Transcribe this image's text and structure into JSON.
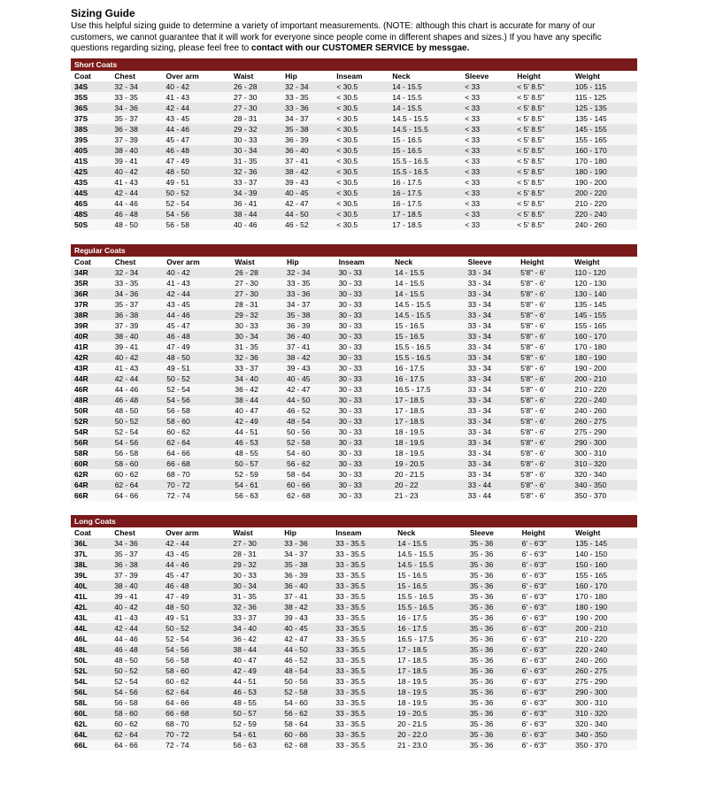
{
  "title": "Sizing Guide",
  "intro_parts": [
    "Use this helpful sizing guide to determine a variety of important measurements. (NOTE: although this chart is accurate for many of our customers, we cannot guarantee that it will work for everyone since people come in different shapes and sizes.) If you have any specific questions regarding sizing, please feel free to ",
    "contact with our CUSTOMER SERVICE by messgae."
  ],
  "columns": [
    "Coat",
    "Chest",
    "Over arm",
    "Waist",
    "Hip",
    "Inseam",
    "Neck",
    "Sleeve",
    "Height",
    "Weight"
  ],
  "sections": [
    {
      "name": "Short Coats",
      "rows": [
        [
          "34S",
          "32 - 34",
          "40 - 42",
          "26 - 28",
          "32 - 34",
          "< 30.5",
          "14 - 15.5",
          "< 33",
          "< 5' 8.5\"",
          "105 - 115"
        ],
        [
          "35S",
          "33 - 35",
          "41 - 43",
          "27 - 30",
          "33 - 35",
          "< 30.5",
          "14 - 15.5",
          "< 33",
          "< 5' 8.5\"",
          "115 - 125"
        ],
        [
          "36S",
          "34 - 36",
          "42 - 44",
          "27 - 30",
          "33 - 36",
          "< 30.5",
          "14 - 15.5",
          "< 33",
          "< 5' 8.5\"",
          "125 - 135"
        ],
        [
          "37S",
          "35 - 37",
          "43 - 45",
          "28 - 31",
          "34 - 37",
          "< 30.5",
          "14.5 - 15.5",
          "< 33",
          "< 5' 8.5\"",
          "135 - 145"
        ],
        [
          "38S",
          "36 - 38",
          "44 - 46",
          "29 - 32",
          "35 - 38",
          "< 30.5",
          "14.5 - 15.5",
          "< 33",
          "< 5' 8.5\"",
          "145 - 155"
        ],
        [
          "39S",
          "37 - 39",
          "45 - 47",
          "30 - 33",
          "36 - 39",
          "< 30.5",
          "15 - 16.5",
          "< 33",
          "< 5' 8.5\"",
          "155 - 165"
        ],
        [
          "40S",
          "38 - 40",
          "46 - 48",
          "30 - 34",
          "36 - 40",
          "< 30.5",
          "15 - 16.5",
          "< 33",
          "< 5' 8.5\"",
          "160 - 170"
        ],
        [
          "41S",
          "39 - 41",
          "47 - 49",
          "31 - 35",
          "37 - 41",
          "< 30.5",
          "15.5 - 16.5",
          "< 33",
          "< 5' 8.5\"",
          "170 - 180"
        ],
        [
          "42S",
          "40 - 42",
          "48 - 50",
          "32 - 36",
          "38 - 42",
          "< 30.5",
          "15.5 - 16.5",
          "< 33",
          "< 5' 8.5\"",
          "180 - 190"
        ],
        [
          "43S",
          "41 - 43",
          "49 - 51",
          "33 - 37",
          "39 - 43",
          "< 30.5",
          "16 - 17.5",
          "< 33",
          "< 5' 8.5\"",
          "190 - 200"
        ],
        [
          "44S",
          "42 - 44",
          "50 - 52",
          "34 - 39",
          "40 - 45",
          "< 30.5",
          "16 - 17.5",
          "< 33",
          "< 5' 8.5\"",
          "200 - 220"
        ],
        [
          "46S",
          "44 - 46",
          "52 - 54",
          "36 - 41",
          "42 - 47",
          "< 30.5",
          "16 - 17.5",
          "< 33",
          "< 5' 8.5\"",
          "210 - 220"
        ],
        [
          "48S",
          "46 - 48",
          "54 - 56",
          "38 - 44",
          "44 - 50",
          "< 30.5",
          "17 - 18.5",
          "< 33",
          "< 5' 8.5\"",
          "220 - 240"
        ],
        [
          "50S",
          "48 - 50",
          "56 - 58",
          "40 - 46",
          "46 - 52",
          "< 30.5",
          "17 - 18.5",
          "< 33",
          "< 5' 8.5\"",
          "240 - 260"
        ]
      ]
    },
    {
      "name": "Regular Coats",
      "rows": [
        [
          "34R",
          "32 - 34",
          "40 - 42",
          "26 - 28",
          "32 - 34",
          "30 - 33",
          "14 - 15.5",
          "33 - 34",
          "5'8\" - 6'",
          "110 - 120"
        ],
        [
          "35R",
          "33 - 35",
          "41 - 43",
          "27 - 30",
          "33 - 35",
          "30 - 33",
          "14 - 15.5",
          "33 - 34",
          "5'8\" - 6'",
          "120 - 130"
        ],
        [
          "36R",
          "34 - 36",
          "42 - 44",
          "27 - 30",
          "33 - 36",
          "30 - 33",
          "14 - 15.5",
          "33 - 34",
          "5'8\" - 6'",
          "130 - 140"
        ],
        [
          "37R",
          "35 - 37",
          "43 - 45",
          "28 - 31",
          "34 - 37",
          "30 - 33",
          "14.5 - 15.5",
          "33 - 34",
          "5'8\" - 6'",
          "135 - 145"
        ],
        [
          "38R",
          "36 - 38",
          "44 - 46",
          "29 - 32",
          "35 - 38",
          "30 - 33",
          "14.5 - 15.5",
          "33 - 34",
          "5'8\" - 6'",
          "145 - 155"
        ],
        [
          "39R",
          "37 - 39",
          "45 - 47",
          "30 - 33",
          "36 - 39",
          "30 - 33",
          "15 - 16.5",
          "33 - 34",
          "5'8\" - 6'",
          "155 - 165"
        ],
        [
          "40R",
          "38 - 40",
          "46 - 48",
          "30 - 34",
          "36 - 40",
          "30 - 33",
          "15 - 16.5",
          "33 - 34",
          "5'8\" - 6'",
          "160 - 170"
        ],
        [
          "41R",
          "39 - 41",
          "47 - 49",
          "31 - 35",
          "37 - 41",
          "30 - 33",
          "15.5 - 16.5",
          "33 - 34",
          "5'8\" - 6'",
          "170 - 180"
        ],
        [
          "42R",
          "40 - 42",
          "48 - 50",
          "32 - 36",
          "38 - 42",
          "30 - 33",
          "15.5 - 16.5",
          "33 - 34",
          "5'8\" - 6'",
          "180 - 190"
        ],
        [
          "43R",
          "41 - 43",
          "49 - 51",
          "33 - 37",
          "39 - 43",
          "30 - 33",
          "16 - 17.5",
          "33 - 34",
          "5'8\" - 6'",
          "190 - 200"
        ],
        [
          "44R",
          "42 - 44",
          "50 - 52",
          "34 - 40",
          "40 - 45",
          "30 - 33",
          "16 - 17.5",
          "33 - 34",
          "5'8\" - 6'",
          "200 - 210"
        ],
        [
          "46R",
          "44 - 46",
          "52 - 54",
          "36 - 42",
          "42 - 47",
          "30 - 33",
          "16.5 - 17.5",
          "33 - 34",
          "5'8\" - 6'",
          "210 - 220"
        ],
        [
          "48R",
          "46 - 48",
          "54 - 56",
          "38 - 44",
          "44 - 50",
          "30 - 33",
          "17 - 18.5",
          "33 - 34",
          "5'8\" - 6'",
          "220 - 240"
        ],
        [
          "50R",
          "48 - 50",
          "56 - 58",
          "40 - 47",
          "46 - 52",
          "30 - 33",
          "17 - 18.5",
          "33 - 34",
          "5'8\" - 6'",
          "240 - 260"
        ],
        [
          "52R",
          "50 - 52",
          "58 - 60",
          "42 - 49",
          "48 - 54",
          "30 - 33",
          "17 - 18.5",
          "33 - 34",
          "5'8\" - 6'",
          "260 - 275"
        ],
        [
          "54R",
          "52 - 54",
          "60 - 62",
          "44 - 51",
          "50 - 56",
          "30 - 33",
          "18 - 19.5",
          "33 - 34",
          "5'8\" - 6'",
          "275 - 290"
        ],
        [
          "56R",
          "54 - 56",
          "62 - 64",
          "46 - 53",
          "52 - 58",
          "30 - 33",
          "18 - 19.5",
          "33 - 34",
          "5'8\" - 6'",
          "290 - 300"
        ],
        [
          "58R",
          "56 - 58",
          "64 - 66",
          "48 - 55",
          "54 - 60",
          "30 - 33",
          "18 - 19.5",
          "33 - 34",
          "5'8\" - 6'",
          "300 - 310"
        ],
        [
          "60R",
          "58 - 60",
          "66 - 68",
          "50 - 57",
          "56 - 62",
          "30 - 33",
          "19 - 20.5",
          "33 - 34",
          "5'8\" - 6'",
          "310 - 320"
        ],
        [
          "62R",
          "60 - 62",
          "68 - 70",
          "52 - 59",
          "58 - 64",
          "30 - 33",
          "20 - 21.5",
          "33 - 34",
          "5'8\" - 6'",
          "320 - 340"
        ],
        [
          "64R",
          "62 - 64",
          "70 - 72",
          "54 - 61",
          "60 - 66",
          "30 - 33",
          "20 - 22",
          "33 - 44",
          "5'8\" - 6'",
          "340 - 350"
        ],
        [
          "66R",
          "64 - 66",
          "72 - 74",
          "56 - 63",
          "62 - 68",
          "30 - 33",
          "21 - 23",
          "33 - 44",
          "5'8\" - 6'",
          "350 - 370"
        ]
      ]
    },
    {
      "name": "Long Coats",
      "rows": [
        [
          "36L",
          "34 - 36",
          "42 - 44",
          "27 - 30",
          "33 - 36",
          "33 - 35.5",
          "14 - 15.5",
          "35 - 36",
          "6' - 6'3\"",
          "135 - 145"
        ],
        [
          "37L",
          "35 - 37",
          "43 - 45",
          "28 - 31",
          "34 - 37",
          "33 - 35.5",
          "14.5 - 15.5",
          "35 - 36",
          "6' - 6'3\"",
          "140 - 150"
        ],
        [
          "38L",
          "36 - 38",
          "44 - 46",
          "29 - 32",
          "35 - 38",
          "33 - 35.5",
          "14.5 - 15.5",
          "35 - 36",
          "6' - 6'3\"",
          "150 - 160"
        ],
        [
          "39L",
          "37 - 39",
          "45 - 47",
          "30 - 33",
          "36 - 39",
          "33 - 35.5",
          "15 - 16.5",
          "35 - 36",
          "6' - 6'3\"",
          "155 - 165"
        ],
        [
          "40L",
          "38 - 40",
          "46 - 48",
          "30 - 34",
          "36 - 40",
          "33 - 35.5",
          "15 - 16.5",
          "35 - 36",
          "6' - 6'3\"",
          "160 - 170"
        ],
        [
          "41L",
          "39 - 41",
          "47 - 49",
          "31 - 35",
          "37 - 41",
          "33 - 35.5",
          "15.5 - 16.5",
          "35 - 36",
          "6' - 6'3\"",
          "170 - 180"
        ],
        [
          "42L",
          "40 - 42",
          "48 - 50",
          "32 - 36",
          "38 - 42",
          "33 - 35.5",
          "15.5 - 16.5",
          "35 - 36",
          "6' - 6'3\"",
          "180 - 190"
        ],
        [
          "43L",
          "41 - 43",
          "49 - 51",
          "33 - 37",
          "39 - 43",
          "33 - 35.5",
          "16 - 17.5",
          "35 - 36",
          "6' - 6'3\"",
          "190 - 200"
        ],
        [
          "44L",
          "42 - 44",
          "50 - 52",
          "34 - 40",
          "40 - 45",
          "33 - 35.5",
          "16 - 17.5",
          "35 - 36",
          "6' - 6'3\"",
          "200 - 210"
        ],
        [
          "46L",
          "44 - 46",
          "52 - 54",
          "36 - 42",
          "42 - 47",
          "33 - 35.5",
          "16.5 - 17.5",
          "35 - 36",
          "6' - 6'3\"",
          "210 - 220"
        ],
        [
          "48L",
          "46 - 48",
          "54 - 56",
          "38 - 44",
          "44 - 50",
          "33 - 35.5",
          "17 - 18.5",
          "35 - 36",
          "6' - 6'3\"",
          "220 - 240"
        ],
        [
          "50L",
          "48 - 50",
          "56 - 58",
          "40 - 47",
          "46 - 52",
          "33 - 35.5",
          "17 - 18.5",
          "35 - 36",
          "6' - 6'3\"",
          "240 - 260"
        ],
        [
          "52L",
          "50 - 52",
          "58 - 60",
          "42 - 49",
          "48 - 54",
          "33 - 35.5",
          "17 - 18.5",
          "35 - 36",
          "6' - 6'3\"",
          "260 - 275"
        ],
        [
          "54L",
          "52 - 54",
          "60 - 62",
          "44 - 51",
          "50 - 56",
          "33 - 35.5",
          "18 - 19.5",
          "35 - 36",
          "6' - 6'3\"",
          "275 - 290"
        ],
        [
          "56L",
          "54 - 56",
          "62 - 64",
          "46 - 53",
          "52 - 58",
          "33 - 35.5",
          "18 - 19.5",
          "35 - 36",
          "6' - 6'3\"",
          "290 - 300"
        ],
        [
          "58L",
          "56 - 58",
          "64 - 66",
          "48 - 55",
          "54 - 60",
          "33 - 35.5",
          "18 - 19.5",
          "35 - 36",
          "6' - 6'3\"",
          "300 - 310"
        ],
        [
          "60L",
          "58 - 60",
          "66 - 68",
          "50 - 57",
          "56 - 62",
          "33 - 35.5",
          "19 - 20.5",
          "35 - 36",
          "6' - 6'3\"",
          "310 - 320"
        ],
        [
          "62L",
          "60 - 62",
          "68 - 70",
          "52 - 59",
          "58 - 64",
          "33 - 35.5",
          "20 - 21.5",
          "35 - 36",
          "6' - 6'3\"",
          "320 - 340"
        ],
        [
          "64L",
          "62 - 64",
          "70 - 72",
          "54 - 61",
          "60 - 66",
          "33 - 35.5",
          "20 - 22.0",
          "35 - 36",
          "6' - 6'3\"",
          "340 - 350"
        ],
        [
          "66L",
          "64 - 66",
          "72 - 74",
          "56 - 63",
          "62 - 68",
          "33 - 35.5",
          "21 - 23.0",
          "35 - 36",
          "6' - 6'3\"",
          "350 - 370"
        ]
      ]
    }
  ]
}
